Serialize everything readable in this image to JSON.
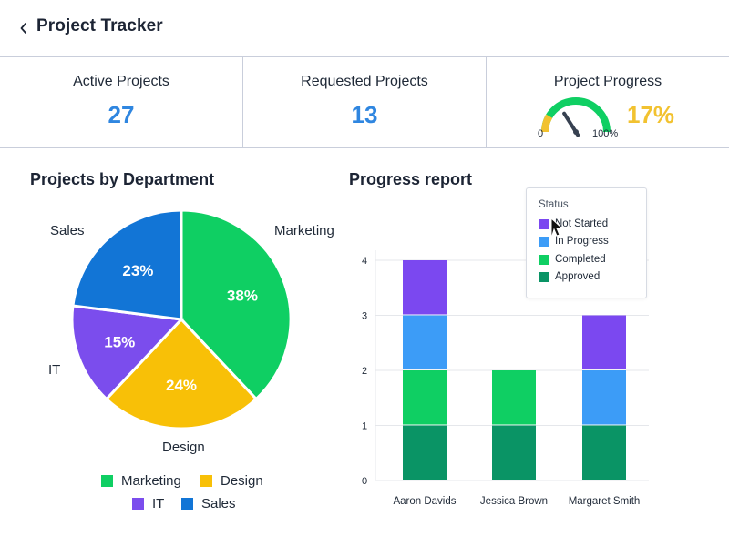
{
  "header": {
    "title": "Project Tracker",
    "back_icon": "chevron-left-icon"
  },
  "stats": {
    "active": {
      "label": "Active Projects",
      "value": "27"
    },
    "requested": {
      "label": "Requested Projects",
      "value": "13"
    },
    "progress": {
      "label": "Project Progress",
      "value": "17%",
      "fraction": 0.17,
      "min_label": "0",
      "max_label": "100%"
    }
  },
  "colors": {
    "marketing": "#0fcf63",
    "design": "#f8c007",
    "it": "#7b4ded",
    "sales": "#1275d6",
    "not_started": "#7b48f0",
    "in_progress": "#3c9cf7",
    "completed": "#0fcf63",
    "approved": "#0a9465",
    "value_blue": "#2f86e0",
    "gauge_yellow": "#f2c230"
  },
  "pie": {
    "title": "Projects by Department",
    "labels": {
      "marketing": "Marketing",
      "design": "Design",
      "it": "IT",
      "sales": "Sales"
    },
    "legend": [
      "Marketing",
      "Design",
      "IT",
      "Sales"
    ]
  },
  "bar": {
    "title": "Progress report",
    "legend_title": "Status",
    "legend": [
      "Not Started",
      "In Progress",
      "Completed",
      "Approved"
    ]
  },
  "chart_data": [
    {
      "type": "pie",
      "title": "Projects by Department",
      "slices": [
        {
          "name": "Marketing",
          "value": 38,
          "label": "38%"
        },
        {
          "name": "Design",
          "value": 24,
          "label": "24%"
        },
        {
          "name": "IT",
          "value": 15,
          "label": "15%"
        },
        {
          "name": "Sales",
          "value": 23,
          "label": "23%"
        }
      ]
    },
    {
      "type": "bar",
      "stacked": true,
      "title": "Progress report",
      "categories": [
        "Aaron Davids",
        "Jessica Brown",
        "Margaret Smith"
      ],
      "series": [
        {
          "name": "Approved",
          "values": [
            1,
            1,
            1
          ]
        },
        {
          "name": "Completed",
          "values": [
            1,
            1,
            0
          ]
        },
        {
          "name": "In Progress",
          "values": [
            1,
            0,
            1
          ]
        },
        {
          "name": "Not Started",
          "values": [
            1,
            0,
            1
          ]
        }
      ],
      "yticks": [
        "0",
        "1",
        "2",
        "3",
        "4"
      ],
      "ylim": [
        0,
        4
      ],
      "grid": true,
      "legend_position": "top-right"
    }
  ]
}
